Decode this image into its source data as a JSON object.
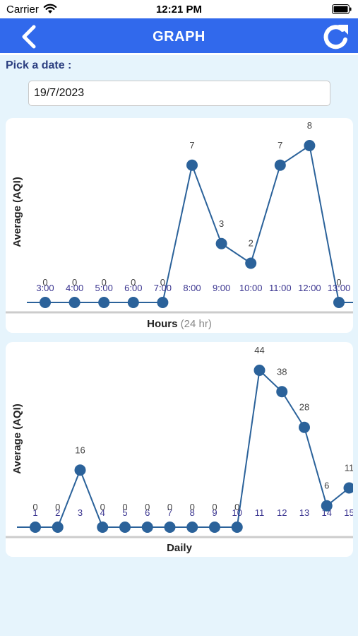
{
  "status_bar": {
    "carrier": "Carrier",
    "time": "12:21 PM"
  },
  "header": {
    "title": "GRAPH"
  },
  "date_picker": {
    "label": "Pick a date :",
    "value": "19/7/2023"
  },
  "colors": {
    "nav": "#3169ec",
    "line": "#2b629a",
    "tick": "#3b3590",
    "label": "#444444"
  },
  "chart_data": [
    {
      "type": "line",
      "x": [
        "3:00",
        "4:00",
        "5:00",
        "6:00",
        "7:00",
        "8:00",
        "9:00",
        "10:00",
        "11:00",
        "12:00",
        "13:00"
      ],
      "values": [
        0,
        0,
        0,
        0,
        0,
        7,
        3,
        2,
        7,
        8,
        0
      ],
      "ylabel": "Average (AQI)",
      "xlabel": "Hours",
      "xlabel_sub": "(24 hr)",
      "grid": false
    },
    {
      "type": "line",
      "x": [
        "1",
        "2",
        "3",
        "4",
        "5",
        "6",
        "7",
        "8",
        "9",
        "10",
        "11",
        "12",
        "13",
        "14",
        "15"
      ],
      "values": [
        0,
        0,
        16,
        0,
        0,
        0,
        0,
        0,
        0,
        0,
        44,
        38,
        28,
        6,
        11
      ],
      "ylabel": "Average (AQI)",
      "xlabel": "Daily",
      "grid": false
    }
  ]
}
